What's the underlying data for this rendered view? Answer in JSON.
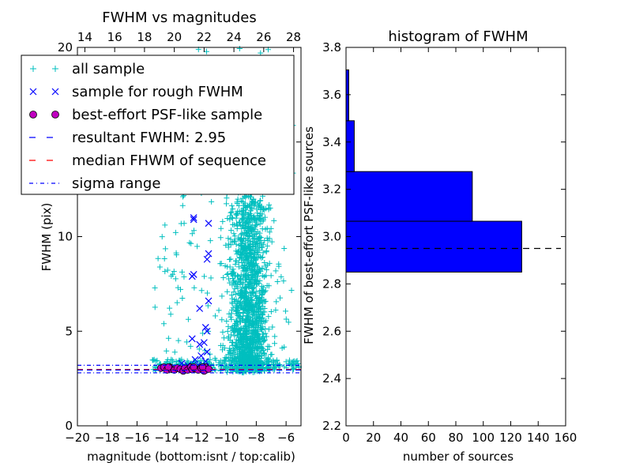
{
  "figure": {
    "left_title": "FWHM vs magnitudes",
    "right_title": "histogram of FWHM"
  },
  "chart_data": [
    {
      "type": "scatter",
      "title": "FWHM vs magnitudes",
      "xlabel": "magnitude (bottom:isnt / top:calib)",
      "ylabel": "FWHM (pix)",
      "xlim": [
        -20,
        -5
      ],
      "ylim": [
        0,
        20
      ],
      "x_ticks": [
        "−20",
        "−18",
        "−16",
        "−14",
        "−12",
        "−10",
        "−8",
        "−6"
      ],
      "x_tick_values": [
        -20,
        -18,
        -16,
        -14,
        -12,
        -10,
        -8,
        -6
      ],
      "top_ticks": [
        "14",
        "16",
        "18",
        "20",
        "22",
        "24",
        "26",
        "28"
      ],
      "top_tick_values": [
        14,
        16,
        18,
        20,
        22,
        24,
        26,
        28
      ],
      "top_offset": 33.5,
      "y_ticks": [
        "0",
        "5",
        "10",
        "15",
        "20"
      ],
      "y_tick_values": [
        0,
        5,
        10,
        15,
        20
      ],
      "grid": false,
      "legend_position": "upper-left",
      "legend": [
        {
          "label": "all sample",
          "marker": "plus",
          "color": "#00bfbf"
        },
        {
          "label": "sample for rough FWHM",
          "marker": "x",
          "color": "#0000ff"
        },
        {
          "label": "best-effort PSF-like sample",
          "marker": "circle",
          "color": "#bf00bf"
        },
        {
          "label": "resultant FWHM: 2.95",
          "marker": "dashed",
          "color": "#0000ff"
        },
        {
          "label": "median FHWM of sequence",
          "marker": "dashed",
          "color": "#ff0000"
        },
        {
          "label": "sigma range",
          "marker": "dashdot",
          "color": "#0000ff"
        }
      ],
      "lines": {
        "resultant_fwhm": 2.95,
        "median_fwhm": 2.98,
        "sigma_range": [
          2.8,
          3.2
        ]
      },
      "series": [
        {
          "name": "sample for rough FWHM",
          "marker": "x",
          "color": "#0000ff",
          "points": [
            [
              -12.2,
              11.0
            ],
            [
              -12.2,
              10.9
            ],
            [
              -11.2,
              10.7
            ],
            [
              -11.2,
              9.1
            ],
            [
              -12.2,
              8.0
            ],
            [
              -11.3,
              8.8
            ],
            [
              -12.3,
              7.9
            ],
            [
              -11.2,
              6.6
            ],
            [
              -11.8,
              6.2
            ],
            [
              -11.4,
              5.2
            ],
            [
              -11.3,
              5.0
            ],
            [
              -11.5,
              4.4
            ],
            [
              -11.8,
              4.3
            ],
            [
              -12.3,
              4.6
            ],
            [
              -11.3,
              3.9
            ],
            [
              -11.7,
              3.7
            ],
            [
              -12.1,
              3.5
            ],
            [
              -11.4,
              3.4
            ],
            [
              -13.0,
              3.3
            ],
            [
              -12.6,
              3.2
            ],
            [
              -11.9,
              3.2
            ],
            [
              -11.6,
              3.1
            ]
          ]
        },
        {
          "name": "best-effort PSF-like sample",
          "marker": "circle",
          "color": "#bf00bf",
          "points": [
            [
              -14.4,
              3.05
            ],
            [
              -14.2,
              3.1
            ],
            [
              -14.0,
              2.95
            ],
            [
              -13.8,
              3.1
            ],
            [
              -13.7,
              3.0
            ],
            [
              -13.5,
              2.95
            ],
            [
              -13.3,
              3.05
            ],
            [
              -13.1,
              3.0
            ],
            [
              -12.9,
              2.9
            ],
            [
              -12.8,
              3.05
            ],
            [
              -12.6,
              2.95
            ],
            [
              -12.4,
              3.1
            ],
            [
              -12.3,
              2.98
            ],
            [
              -12.1,
              3.02
            ],
            [
              -11.9,
              2.95
            ],
            [
              -11.7,
              3.05
            ],
            [
              -11.5,
              2.9
            ],
            [
              -11.4,
              3.1
            ],
            [
              -11.2,
              3.0
            ],
            [
              -13.9,
              3.1
            ],
            [
              -12.2,
              3.1
            ],
            [
              -11.6,
              3.1
            ]
          ]
        }
      ],
      "all_sample_generated": {
        "name": "all sample",
        "marker": "plus",
        "color": "#00bfbf",
        "bulk_x_range": [
          -10.5,
          -5
        ],
        "bulk_y_range": [
          2.5,
          14
        ],
        "scattered_x_range": [
          -15,
          -10.5
        ],
        "scattered_y_range": [
          3,
          20
        ]
      }
    },
    {
      "type": "histogram",
      "orientation": "horizontal",
      "title": "histogram of FWHM",
      "xlabel": "number of sources",
      "ylabel": "FWHM of best-effort PSF-like sources",
      "xlim": [
        0,
        160
      ],
      "ylim": [
        2.2,
        3.8
      ],
      "x_ticks": [
        "0",
        "20",
        "40",
        "60",
        "80",
        "100",
        "120",
        "140",
        "160"
      ],
      "x_tick_values": [
        0,
        20,
        40,
        60,
        80,
        100,
        120,
        140,
        160
      ],
      "y_ticks": [
        "2.2",
        "2.4",
        "2.6",
        "2.8",
        "3.0",
        "3.2",
        "3.4",
        "3.6",
        "3.8"
      ],
      "y_tick_values": [
        2.2,
        2.4,
        2.6,
        2.8,
        3.0,
        3.2,
        3.4,
        3.6,
        3.8
      ],
      "bar_color": "#0000ff",
      "bins": [
        {
          "low": 2.85,
          "high": 3.065,
          "count": 128
        },
        {
          "low": 3.065,
          "high": 3.275,
          "count": 92
        },
        {
          "low": 3.275,
          "high": 3.49,
          "count": 6
        },
        {
          "low": 3.49,
          "high": 3.705,
          "count": 2
        }
      ],
      "reference_line": 2.95
    }
  ]
}
